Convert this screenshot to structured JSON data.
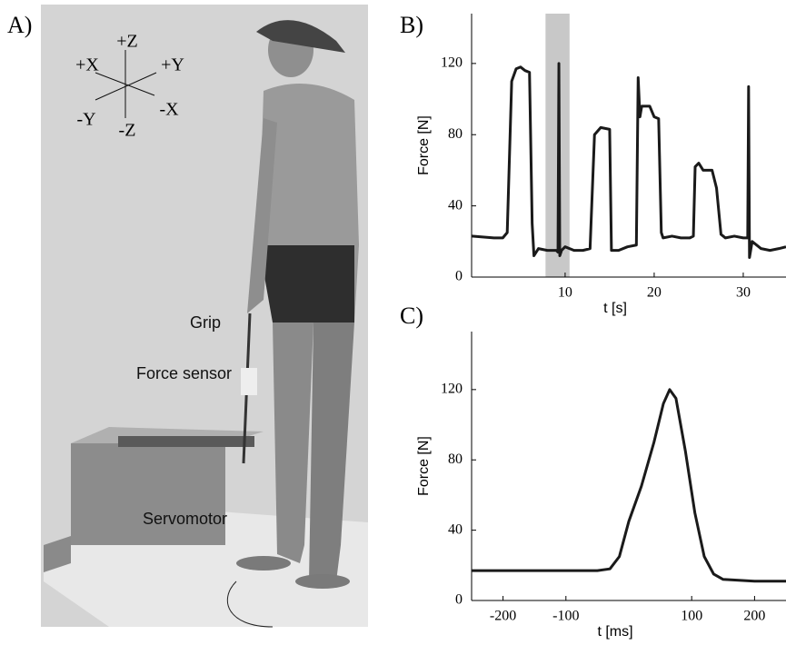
{
  "figure": {
    "panels": [
      "A)",
      "B)",
      "C)"
    ],
    "axes_labels": [
      "+Z",
      "+X",
      "+Y",
      "-Y",
      "-X",
      "-Z"
    ],
    "photo_labels": [
      "Grip",
      "Force sensor",
      "Servomotor"
    ]
  },
  "chart_data": [
    {
      "type": "line",
      "ylabel": "Force [N]",
      "xlabel": "t [s]",
      "xlim": [
        -0.5,
        34.8
      ],
      "ylim": [
        0,
        148
      ],
      "xticks": [
        10,
        20,
        30
      ],
      "yticks": [
        0,
        40,
        80,
        120
      ],
      "highlight": [
        7.8,
        10.5
      ],
      "highlight_color": "#c8c8c8",
      "x": [
        -0.5,
        2,
        3,
        3.5,
        4,
        4.5,
        5,
        5.5,
        6,
        6.3,
        6.5,
        7,
        8,
        9,
        9.2,
        9.3,
        9.4,
        9.6,
        10,
        11,
        12,
        12.8,
        13.3,
        14,
        15,
        15.2,
        16,
        17,
        18,
        18.2,
        18.4,
        18.6,
        19.5,
        20,
        20.5,
        20.8,
        21,
        22,
        23,
        24,
        24.4,
        24.6,
        25,
        25.5,
        26.5,
        27,
        27.5,
        28,
        29,
        30,
        30.5,
        30.6,
        30.7,
        31,
        32,
        33,
        34,
        34.8
      ],
      "series": [
        {
          "color": "#1a1a1a",
          "values": [
            23,
            22,
            22,
            25,
            110,
            117,
            118,
            116,
            115,
            30,
            12,
            16,
            15,
            15,
            14,
            120,
            12,
            15,
            17,
            15,
            15,
            16,
            80,
            84,
            83,
            15,
            15,
            17,
            18,
            112,
            90,
            96,
            96,
            90,
            89,
            25,
            22,
            23,
            22,
            22,
            23,
            62,
            64,
            60,
            60,
            50,
            24,
            22,
            23,
            22,
            22,
            107,
            11,
            20,
            16,
            15,
            16,
            17
          ]
        }
      ]
    },
    {
      "type": "line",
      "ylabel": "Force [N]",
      "xlabel": "t [ms]",
      "xlim": [
        -250,
        250
      ],
      "ylim": [
        0,
        153
      ],
      "xticks": [
        -200,
        -100,
        100,
        200
      ],
      "yticks": [
        0,
        40,
        80,
        120
      ],
      "x": [
        -250,
        -200,
        -150,
        -100,
        -50,
        -30,
        -15,
        0,
        20,
        40,
        55,
        65,
        75,
        90,
        105,
        120,
        135,
        150,
        200,
        250
      ],
      "series": [
        {
          "color": "#1a1a1a",
          "values": [
            17,
            17,
            17,
            17,
            17,
            18,
            25,
            45,
            65,
            90,
            112,
            120,
            115,
            85,
            50,
            25,
            15,
            12,
            11,
            11
          ]
        }
      ]
    }
  ]
}
